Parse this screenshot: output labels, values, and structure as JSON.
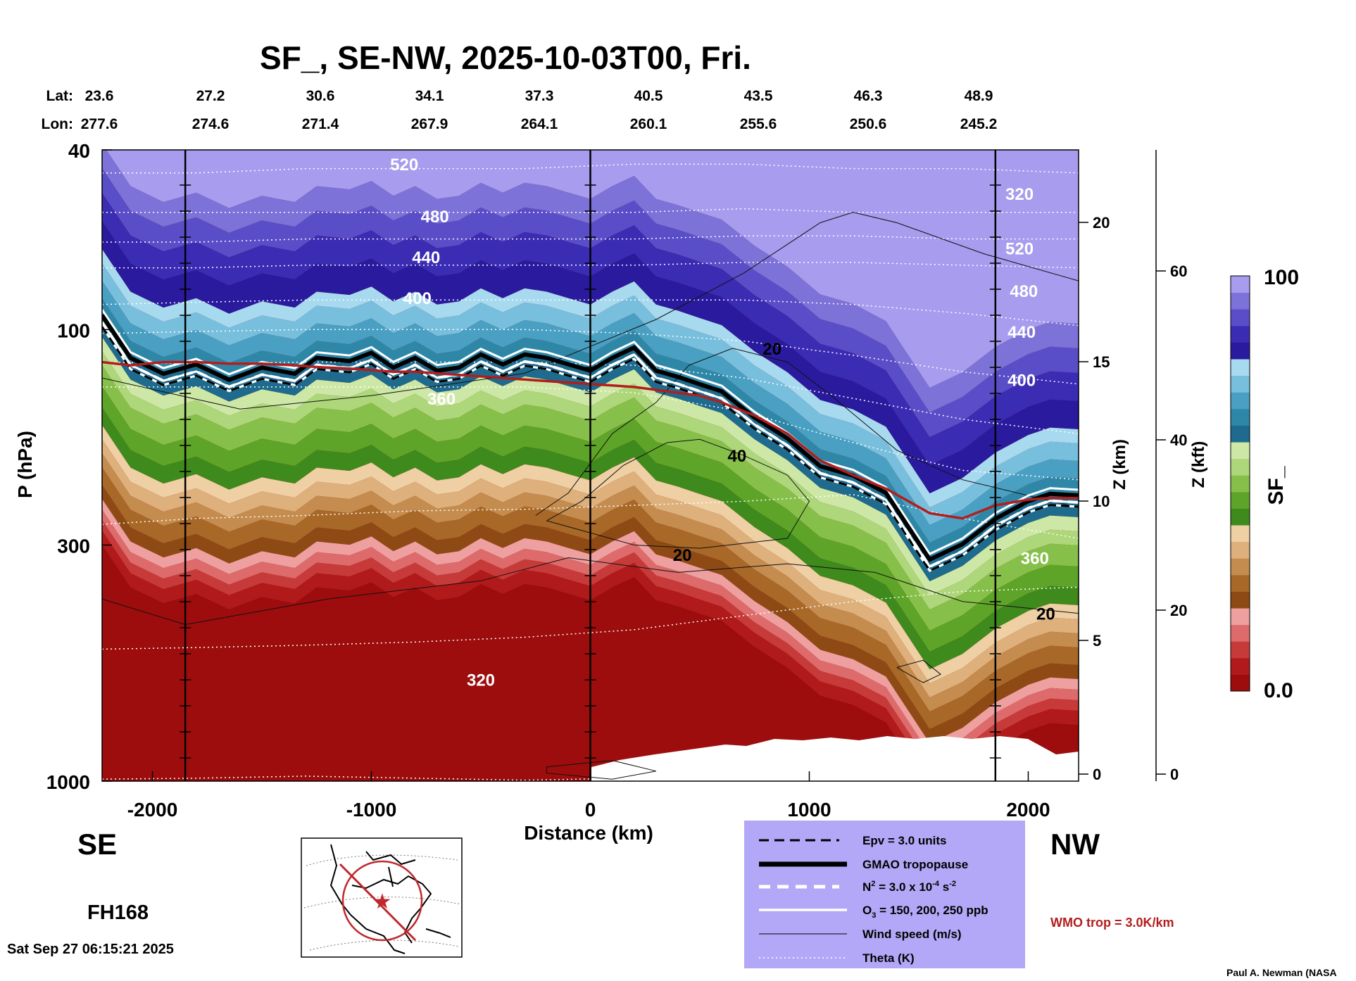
{
  "chart_data": {
    "type": "heatmap",
    "title": "SF_, SE-NW, 2025-10-03T00, Fri.",
    "xlabel": "Distance (km)",
    "ylabel": "P (hPa)",
    "z_label": "Z (km)",
    "kft_label": "Z (kft)",
    "colorbar_label": "SF_",
    "colorbar_max_label": "100",
    "colorbar_min_label": "0.0",
    "colorbar_colors": [
      "#9d0d0d",
      "#b11a1a",
      "#c73a3a",
      "#dd6b6b",
      "#eea0a0",
      "#8e4a14",
      "#a86828",
      "#c48c4e",
      "#ddb07c",
      "#efcfa4",
      "#3e8a1c",
      "#5ea428",
      "#86c04a",
      "#add77a",
      "#cde8a6",
      "#1e6b8e",
      "#2f87a8",
      "#4aa0c2",
      "#78bfdd",
      "#a7d9ef",
      "#2a1a9e",
      "#3b2cb4",
      "#5a4ec8",
      "#7c72d8",
      "#a79cee"
    ],
    "xlim": [
      -2230,
      2230
    ],
    "ylim": [
      1000,
      40
    ],
    "x_ticks": [
      "-2000",
      "-1000",
      "0",
      "1000",
      "2000"
    ],
    "x_tick_values": [
      -2000,
      -1000,
      0,
      1000,
      2000
    ],
    "p_ticks": [
      "40",
      "100",
      "300",
      "1000"
    ],
    "p_tick_values": [
      40,
      100,
      300,
      1000
    ],
    "z_ticks": [
      "0",
      "5",
      "10",
      "15",
      "20"
    ],
    "kft_ticks": [
      "0",
      "20",
      "40",
      "60"
    ],
    "lat_label": "Lat:",
    "lon_label": "Lon:",
    "lat": [
      "23.6",
      "27.2",
      "30.6",
      "34.1",
      "37.3",
      "40.5",
      "43.5",
      "46.3",
      "48.9"
    ],
    "lon": [
      "277.6",
      "274.6",
      "271.4",
      "267.9",
      "264.1",
      "260.1",
      "255.6",
      "250.6",
      "245.2"
    ],
    "vertical_markers_km": [
      -1850,
      0,
      1850
    ],
    "theta_labels": [
      "520",
      "480",
      "440",
      "400",
      "360",
      "320",
      "320",
      "520",
      "480",
      "440",
      "400",
      "360"
    ],
    "wind_labels": [
      "20",
      "40",
      "20",
      "20"
    ],
    "tropopause_p": [
      95,
      118,
      128,
      122,
      132,
      124,
      128,
      118,
      120,
      115,
      124,
      118,
      126,
      124,
      116,
      122,
      116,
      118,
      122,
      126,
      118,
      112,
      126,
      130,
      135,
      140,
      160,
      178,
      205,
      215,
      235,
      330,
      305,
      268,
      245,
      236,
      238
    ],
    "tropopause_x": [
      -2230,
      -2100,
      -1950,
      -1800,
      -1650,
      -1500,
      -1350,
      -1250,
      -1100,
      -1000,
      -900,
      -800,
      -700,
      -600,
      -500,
      -400,
      -300,
      -200,
      -100,
      0,
      100,
      200,
      300,
      400,
      500,
      600,
      750,
      900,
      1050,
      1200,
      1350,
      1550,
      1700,
      1850,
      2000,
      2100,
      2230
    ]
  },
  "corner": {
    "se": "SE",
    "nw": "NW",
    "forecast_hour": "FH168",
    "timestamp": "Sat Sep 27 06:15:21 2025",
    "wmo_trop": "WMO trop = 3.0K/km",
    "credit": "Paul A. Newman (NASA"
  },
  "legend": {
    "items": [
      "Epv = 3.0 units",
      "GMAO tropopause",
      "N",
      "O",
      "Wind speed (m/s)",
      "Theta (K)"
    ],
    "n2_tail": " = 3.0 x 10",
    "n2_exp": "-4",
    "n2_unit": " s",
    "n2_unit_exp": "-2",
    "o3_sub": "3",
    "o3_tail": " = 150, 200, 250 ppb",
    "n2_sup": "2",
    "bg_color": "#b3a8f7"
  },
  "colors": {
    "tropopause_red": "#b21e1e",
    "theta": "#ffffff",
    "ocean_map_line": "#c0282d"
  }
}
